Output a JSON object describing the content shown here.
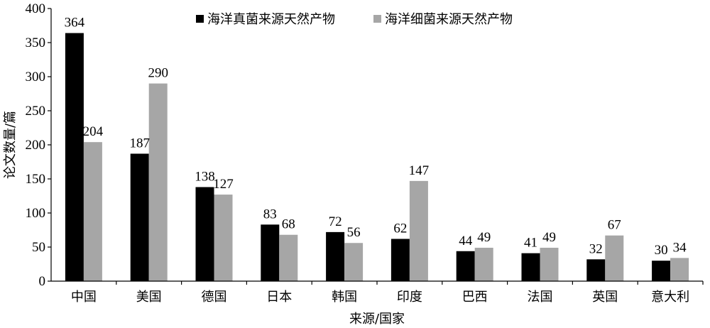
{
  "chart_data": {
    "type": "bar",
    "title": "",
    "xlabel": "来源/国家",
    "ylabel": "论文数量/篇",
    "ylim": [
      0,
      400
    ],
    "yticks": [
      0,
      50,
      100,
      150,
      200,
      250,
      300,
      350,
      400
    ],
    "grid": false,
    "legend_position": "top",
    "categories": [
      "中国",
      "美国",
      "德国",
      "日本",
      "韩国",
      "印度",
      "巴西",
      "法国",
      "英国",
      "意大利"
    ],
    "series": [
      {
        "name": "海洋真菌来源天然产物",
        "color": "#000000",
        "values": [
          364,
          187,
          138,
          83,
          72,
          62,
          44,
          41,
          32,
          30
        ]
      },
      {
        "name": "海洋细菌来源天然产物",
        "color": "#a6a6a6",
        "values": [
          204,
          290,
          127,
          68,
          56,
          147,
          49,
          49,
          67,
          34
        ]
      }
    ]
  }
}
